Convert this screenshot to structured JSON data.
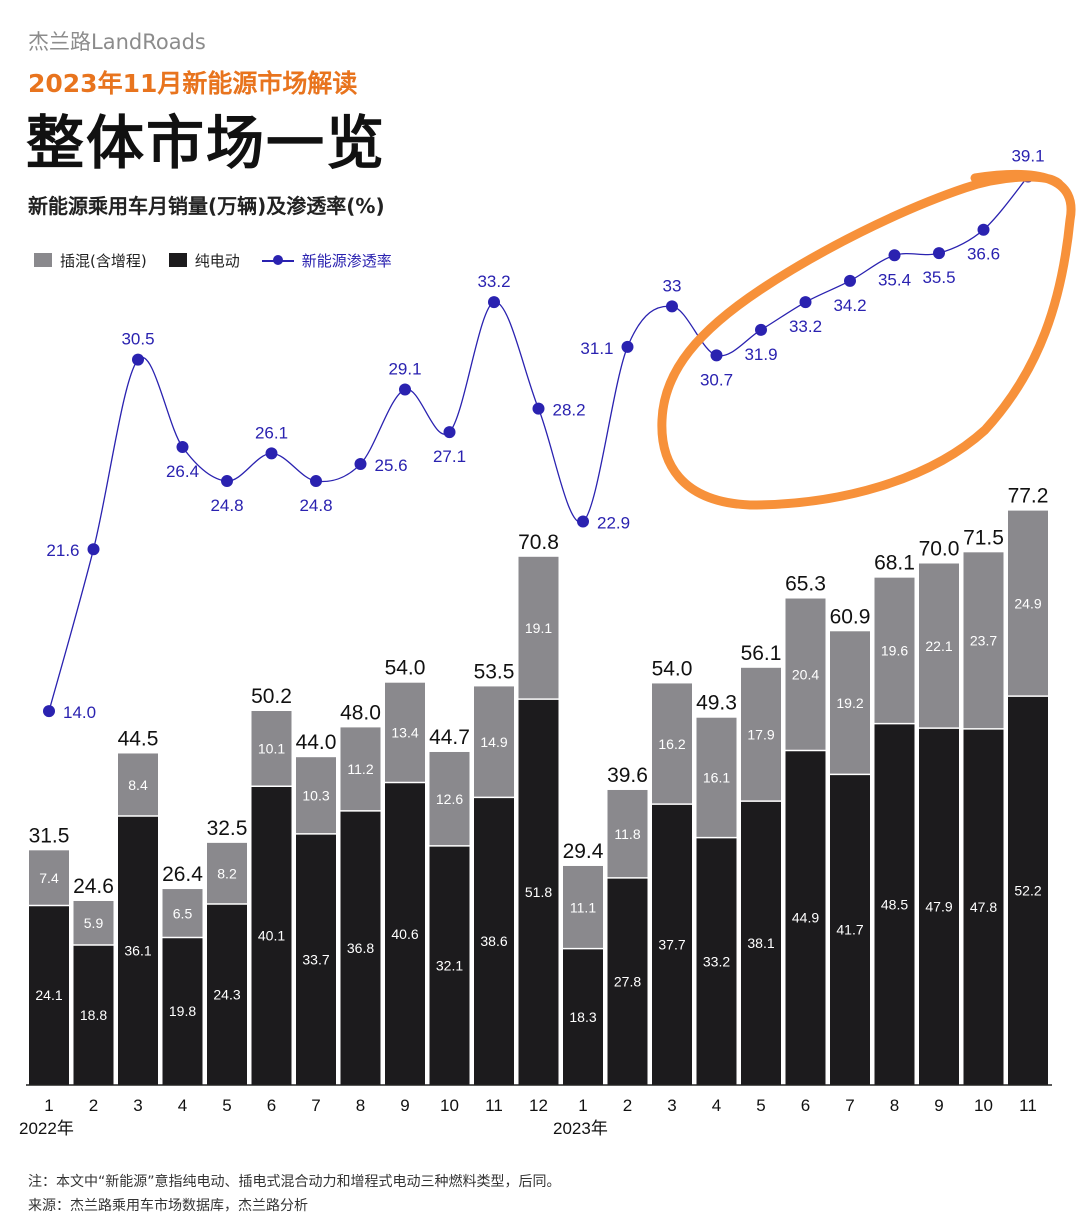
{
  "header": {
    "brand": "杰兰路LandRoads",
    "subtitle": "2023年11月新能源市场解读",
    "title": "整体市场一览",
    "chart_title": "新能源乘用车月销量(万辆)及渗透率(%)"
  },
  "colors": {
    "phev": "#8a898d",
    "bev": "#1c1b1d",
    "rate": "#2a22b0",
    "subtitle": "#e8741e",
    "highlight": "#f7913a"
  },
  "chart_data": {
    "type": "bar",
    "stacked": true,
    "categories": [
      "1",
      "2",
      "3",
      "4",
      "5",
      "6",
      "7",
      "8",
      "9",
      "10",
      "11",
      "12",
      "1",
      "2",
      "3",
      "4",
      "5",
      "6",
      "7",
      "8",
      "9",
      "10",
      "11"
    ],
    "year_labels": [
      {
        "label": "2022年",
        "index": 0
      },
      {
        "label": "2023年",
        "index": 12
      }
    ],
    "series": [
      {
        "name": "纯电动",
        "values": [
          24.1,
          18.8,
          36.1,
          19.8,
          24.3,
          40.1,
          33.7,
          36.8,
          40.6,
          32.1,
          38.6,
          51.8,
          18.3,
          27.8,
          37.7,
          33.2,
          38.1,
          44.9,
          41.7,
          48.5,
          47.9,
          47.8,
          52.2
        ]
      },
      {
        "name": "插混(含增程)",
        "values": [
          7.4,
          5.9,
          8.4,
          6.5,
          8.2,
          10.1,
          10.3,
          11.2,
          13.4,
          12.6,
          14.9,
          19.1,
          11.1,
          11.8,
          16.2,
          16.1,
          17.9,
          20.4,
          19.2,
          19.6,
          22.1,
          23.7,
          24.9
        ]
      }
    ],
    "totals": [
      "31.5",
      "24.6",
      "44.5",
      "26.4",
      "32.5",
      "50.2",
      "44.0",
      "48.0",
      "54.0",
      "44.7",
      "53.5",
      "70.8",
      "29.4",
      "39.6",
      "54.0",
      "49.3",
      "56.1",
      "65.3",
      "60.9",
      "68.1",
      "70.0",
      "71.5",
      "77.2"
    ],
    "rate": {
      "name": "新能源渗透率",
      "type": "line",
      "values": [
        14.0,
        21.6,
        30.5,
        26.4,
        24.8,
        26.1,
        24.8,
        25.6,
        29.1,
        27.1,
        33.2,
        28.2,
        22.9,
        31.1,
        33,
        30.7,
        31.9,
        33.2,
        34.2,
        35.4,
        35.5,
        36.6,
        39.1
      ],
      "labels": [
        "14.0",
        "21.6",
        "30.5",
        "26.4",
        "24.8",
        "26.1",
        "24.8",
        "25.6",
        "29.1",
        "27.1",
        "33.2",
        "28.2",
        "22.9",
        "31.1",
        "33",
        "30.7",
        "31.9",
        "33.2",
        "34.2",
        "35.4",
        "35.5",
        "36.6",
        "39.1"
      ]
    },
    "legend": {
      "position": "top-left",
      "entries": [
        "插混(含增程)",
        "纯电动",
        "新能源渗透率"
      ]
    },
    "highlight": {
      "shape": "hand-drawn ellipse",
      "covers_categories": "2023年3月–11月 渗透率"
    }
  },
  "notes": {
    "line1": "注：本文中“新能源”意指纯电动、插电式混合动力和增程式电动三种燃料类型，后同。",
    "line2": "来源：杰兰路乘用车市场数据库，杰兰路分析"
  }
}
